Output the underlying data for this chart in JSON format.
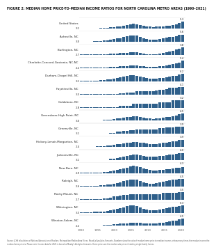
{
  "title": "FIGURE 2: MEDIAN HOME PRICE-TO-MEDIAN INCOME RATIOS FOR NORTH CAROLINA METRO AREAS (1990–2021)",
  "metros": [
    "United States",
    "Asheville, NC",
    "Burlington, NC",
    "Charlotte-Concord-Gastonia, NC-NC",
    "Durham-Chapel Hill, NC",
    "Fayetteville, NC",
    "Goldsboro, NC",
    "Greensboro-High Point, NC",
    "Greenville, NC",
    "Hickory-Lenoir-Morganton, NC",
    "Jacksonville, NC",
    "New Bern, NC",
    "Raleigh, NC",
    "Rocky Mount, NC",
    "Wilmington, NC",
    "Winston-Salem, NC"
  ],
  "start_labels": [
    "3.1",
    "3.0",
    "2.7",
    "2.2",
    "3.1",
    "3.3",
    "2.8",
    "3.0",
    "3.1",
    "2.4",
    "3.1",
    "2.9",
    "2.6",
    "2.7",
    "3.3",
    "2.2"
  ],
  "end_labels": [
    "5.3",
    "5.6",
    "3.8",
    "5.4",
    "6.2",
    "4.1",
    "3.2",
    "4.5",
    "3.9",
    "3.9",
    "4.0",
    "4.3",
    "4.5",
    "3.5",
    "6.3",
    "4.5"
  ],
  "years": [
    1990,
    1991,
    1992,
    1993,
    1994,
    1995,
    1996,
    1997,
    1998,
    1999,
    2000,
    2001,
    2002,
    2003,
    2004,
    2005,
    2006,
    2007,
    2008,
    2009,
    2010,
    2011,
    2012,
    2013,
    2014,
    2015,
    2016,
    2017,
    2018,
    2019,
    2020,
    2021
  ],
  "data": {
    "United States": [
      3.1,
      3.1,
      3.1,
      3.1,
      3.1,
      3.1,
      3.2,
      3.2,
      3.3,
      3.4,
      3.5,
      3.6,
      3.7,
      3.9,
      4.1,
      4.4,
      4.5,
      4.4,
      4.2,
      3.9,
      3.7,
      3.6,
      3.5,
      3.6,
      3.7,
      3.8,
      3.9,
      4.0,
      4.2,
      4.4,
      4.9,
      5.3
    ],
    "Asheville, NC": [
      3.0,
      3.0,
      3.0,
      3.0,
      3.1,
      3.1,
      3.2,
      3.3,
      3.5,
      3.7,
      3.9,
      4.1,
      4.3,
      4.6,
      4.9,
      5.2,
      5.3,
      5.2,
      4.8,
      4.3,
      4.0,
      3.8,
      3.7,
      3.8,
      4.0,
      4.2,
      4.4,
      4.6,
      4.8,
      5.0,
      5.4,
      5.6
    ],
    "Burlington, NC": [
      2.7,
      2.7,
      2.7,
      2.7,
      2.7,
      2.7,
      2.7,
      2.8,
      2.8,
      2.9,
      2.9,
      2.9,
      3.0,
      3.0,
      3.0,
      3.1,
      3.1,
      3.1,
      3.0,
      2.9,
      2.8,
      2.8,
      2.8,
      2.8,
      2.9,
      3.0,
      3.1,
      3.2,
      3.3,
      3.5,
      3.6,
      3.8
    ],
    "Charlotte-Concord-Gastonia, NC-NC": [
      2.2,
      2.2,
      2.2,
      2.2,
      2.2,
      2.2,
      2.3,
      2.3,
      2.4,
      2.5,
      2.6,
      2.7,
      2.8,
      2.9,
      3.1,
      3.3,
      3.4,
      3.3,
      3.1,
      2.8,
      2.7,
      2.6,
      2.6,
      2.7,
      2.9,
      3.1,
      3.3,
      3.6,
      3.9,
      4.2,
      4.7,
      5.4
    ],
    "Durham-Chapel Hill, NC": [
      3.1,
      3.1,
      3.2,
      3.2,
      3.3,
      3.3,
      3.4,
      3.5,
      3.7,
      3.9,
      4.1,
      4.4,
      4.7,
      5.0,
      5.3,
      5.6,
      5.7,
      5.5,
      5.1,
      4.6,
      4.3,
      4.1,
      4.0,
      4.1,
      4.3,
      4.5,
      4.7,
      4.9,
      5.2,
      5.5,
      5.9,
      6.2
    ],
    "Fayetteville, NC": [
      3.3,
      3.3,
      3.3,
      3.3,
      3.3,
      3.3,
      3.3,
      3.3,
      3.3,
      3.3,
      3.3,
      3.3,
      3.4,
      3.4,
      3.5,
      3.5,
      3.5,
      3.6,
      3.6,
      3.6,
      3.6,
      3.6,
      3.6,
      3.7,
      3.8,
      3.8,
      3.9,
      4.0,
      4.0,
      4.0,
      4.1,
      4.1
    ],
    "Goldsboro, NC": [
      2.8,
      2.8,
      2.8,
      2.8,
      2.8,
      2.8,
      2.8,
      2.8,
      2.8,
      2.8,
      2.8,
      2.8,
      2.9,
      2.9,
      2.9,
      2.9,
      3.0,
      3.0,
      3.0,
      3.0,
      3.0,
      3.0,
      3.0,
      3.0,
      3.1,
      3.1,
      3.1,
      3.1,
      3.2,
      3.2,
      3.2,
      3.2
    ],
    "Greensboro-High Point, NC": [
      3.0,
      3.0,
      3.0,
      3.0,
      3.0,
      3.0,
      3.0,
      3.1,
      3.1,
      3.2,
      3.3,
      3.4,
      3.5,
      3.6,
      3.7,
      3.8,
      3.9,
      3.9,
      3.8,
      3.6,
      3.5,
      3.4,
      3.3,
      3.4,
      3.5,
      3.6,
      3.7,
      3.8,
      3.9,
      4.1,
      4.3,
      4.5
    ],
    "Greenville, NC": [
      3.1,
      3.1,
      3.1,
      3.1,
      3.1,
      3.1,
      3.1,
      3.1,
      3.1,
      3.2,
      3.2,
      3.3,
      3.3,
      3.4,
      3.4,
      3.5,
      3.5,
      3.6,
      3.6,
      3.6,
      3.6,
      3.6,
      3.6,
      3.6,
      3.7,
      3.7,
      3.8,
      3.8,
      3.8,
      3.9,
      3.9,
      3.9
    ],
    "Hickory-Lenoir-Morganton, NC": [
      2.4,
      2.4,
      2.4,
      2.4,
      2.4,
      2.5,
      2.5,
      2.5,
      2.6,
      2.7,
      2.8,
      2.9,
      3.0,
      3.1,
      3.2,
      3.3,
      3.4,
      3.4,
      3.3,
      3.2,
      3.1,
      3.0,
      3.0,
      3.0,
      3.1,
      3.2,
      3.3,
      3.4,
      3.5,
      3.6,
      3.8,
      3.9
    ],
    "Jacksonville, NC": [
      3.1,
      3.1,
      3.1,
      3.1,
      3.1,
      3.1,
      3.1,
      3.1,
      3.1,
      3.2,
      3.2,
      3.3,
      3.4,
      3.5,
      3.6,
      3.7,
      3.8,
      3.8,
      3.7,
      3.6,
      3.5,
      3.5,
      3.5,
      3.5,
      3.6,
      3.6,
      3.7,
      3.8,
      3.8,
      3.9,
      4.0,
      4.0
    ],
    "New Bern, NC": [
      2.9,
      2.9,
      2.9,
      2.9,
      3.0,
      3.0,
      3.0,
      3.1,
      3.2,
      3.3,
      3.5,
      3.6,
      3.8,
      4.0,
      4.2,
      4.5,
      4.6,
      4.5,
      4.3,
      4.0,
      3.8,
      3.6,
      3.5,
      3.5,
      3.6,
      3.7,
      3.8,
      3.9,
      4.0,
      4.1,
      4.2,
      4.3
    ],
    "Raleigh, NC": [
      2.6,
      2.6,
      2.7,
      2.7,
      2.7,
      2.7,
      2.8,
      2.9,
      3.0,
      3.1,
      3.3,
      3.5,
      3.7,
      3.9,
      4.1,
      4.3,
      4.4,
      4.3,
      4.0,
      3.7,
      3.5,
      3.3,
      3.3,
      3.4,
      3.6,
      3.8,
      4.0,
      4.2,
      4.3,
      4.4,
      4.5,
      4.5
    ],
    "Rocky Mount, NC": [
      2.7,
      2.7,
      2.7,
      2.7,
      2.7,
      2.7,
      2.7,
      2.8,
      2.8,
      2.9,
      3.0,
      3.0,
      3.1,
      3.2,
      3.2,
      3.3,
      3.3,
      3.3,
      3.3,
      3.3,
      3.3,
      3.3,
      3.3,
      3.3,
      3.3,
      3.4,
      3.4,
      3.4,
      3.4,
      3.4,
      3.5,
      3.5
    ],
    "Wilmington, NC": [
      3.3,
      3.3,
      3.4,
      3.4,
      3.5,
      3.5,
      3.6,
      3.7,
      3.9,
      4.1,
      4.4,
      4.7,
      5.1,
      5.5,
      5.9,
      6.2,
      6.2,
      6.0,
      5.5,
      4.9,
      4.5,
      4.2,
      4.1,
      4.2,
      4.4,
      4.7,
      5.0,
      5.3,
      5.6,
      5.8,
      6.1,
      6.3
    ],
    "Winston-Salem, NC": [
      2.2,
      2.2,
      2.2,
      2.3,
      2.3,
      2.3,
      2.3,
      2.4,
      2.4,
      2.5,
      2.6,
      2.7,
      2.8,
      2.9,
      3.0,
      3.1,
      3.2,
      3.2,
      3.1,
      3.0,
      2.9,
      2.9,
      2.9,
      3.0,
      3.1,
      3.2,
      3.3,
      3.5,
      3.7,
      3.9,
      4.2,
      4.5
    ]
  },
  "bar_color": "#2E5F8A",
  "background_color": "#FFFFFF",
  "label_color": "#222222",
  "tick_label_color": "#666666",
  "footnote": "Source: JCHS tabulations of National Association of Realtors, Metropolitan Median Area Prices, Moody's Analytics Forecasts. Numbers show the ratio of median home price to median income, or how many times the median income the median home price is. Please note: Income data for 2021 is based on Moody's Analytics forecasts. Home prices are the median sale price of existing single-family homes.",
  "xtick_years": [
    1990,
    1995,
    2000,
    2005,
    2010,
    2015,
    2020
  ]
}
